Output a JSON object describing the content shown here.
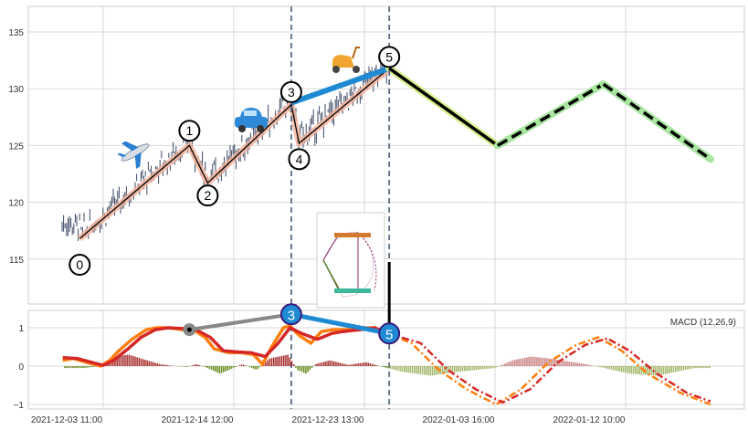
{
  "chart_data": {
    "type": "candlestick+line",
    "x_unit": "tick index (0 = first labeled tick)",
    "x_ticks": [
      {
        "t": 0,
        "label": "2021-12-03 11:00"
      },
      {
        "t": 1,
        "label": "2021-12-14 12:00"
      },
      {
        "t": 2,
        "label": "2021-12-23 13:00"
      },
      {
        "t": 3,
        "label": "2022-01-03 16:00"
      },
      {
        "t": 4,
        "label": "2022-01-12 10:00"
      }
    ],
    "price_panel": {
      "ylim": [
        110.8,
        137
      ],
      "y_ticks": [
        "115",
        "120",
        "125",
        "130",
        "135"
      ],
      "y_tick_values": [
        115,
        120,
        125,
        130,
        135
      ],
      "waves": [
        {
          "label": "0",
          "t": -0.18,
          "price": 116.8,
          "label_price": 114.5
        },
        {
          "label": "1",
          "t": 0.66,
          "price": 125.0,
          "label_price": 126.3
        },
        {
          "label": "2",
          "t": 0.8,
          "price": 121.7,
          "label_price": 120.6
        },
        {
          "label": "3",
          "t": 1.44,
          "price": 128.6,
          "label_price": 129.7
        },
        {
          "label": "4",
          "t": 1.5,
          "price": 125.2,
          "label_price": 123.8
        },
        {
          "label": "5",
          "t": 2.19,
          "price": 131.8,
          "label_price": 132.8
        }
      ],
      "projection": [
        {
          "t": 2.19,
          "price": 131.8
        },
        {
          "t": 3.02,
          "price": 125.0
        },
        {
          "t": 3.83,
          "price": 130.4
        },
        {
          "t": 4.65,
          "price": 123.8
        }
      ],
      "vertical_markers_t": [
        1.44,
        2.19
      ],
      "icons": [
        "airplane-icon",
        "car-icon",
        "scooter-icon"
      ]
    },
    "macd_panel": {
      "label": "MACD (12,26,9)",
      "ylim": [
        -1.1,
        1.4
      ],
      "y_ticks": [
        "1",
        "0",
        "−1"
      ],
      "y_tick_values": [
        1,
        0,
        -1
      ],
      "macd": [
        [
          -0.31,
          0.15
        ],
        [
          -0.23,
          0.2
        ],
        [
          -0.13,
          0.1
        ],
        [
          -0.02,
          0
        ],
        [
          0.05,
          0.15
        ],
        [
          0.12,
          0.4
        ],
        [
          0.22,
          0.7
        ],
        [
          0.33,
          0.95
        ],
        [
          0.41,
          1.0
        ],
        [
          0.5,
          1.0
        ],
        [
          0.61,
          0.95
        ],
        [
          0.71,
          0.9
        ],
        [
          0.78,
          0.75
        ],
        [
          0.85,
          0.45
        ],
        [
          0.96,
          0.35
        ],
        [
          1.06,
          0.35
        ],
        [
          1.15,
          0.3
        ],
        [
          1.22,
          0.05
        ],
        [
          1.29,
          0.5
        ],
        [
          1.38,
          1.0
        ],
        [
          1.43,
          1.05
        ],
        [
          1.5,
          0.8
        ],
        [
          1.59,
          0.6
        ],
        [
          1.67,
          0.9
        ],
        [
          1.76,
          0.95
        ],
        [
          1.87,
          0.95
        ],
        [
          1.97,
          1.0
        ],
        [
          2.08,
          1.0
        ],
        [
          2.18,
          0.85
        ]
      ],
      "signal": [
        [
          -0.31,
          0.22
        ],
        [
          -0.2,
          0.2
        ],
        [
          -0.09,
          0.1
        ],
        [
          0,
          0.02
        ],
        [
          0.08,
          0.15
        ],
        [
          0.19,
          0.45
        ],
        [
          0.29,
          0.75
        ],
        [
          0.4,
          0.95
        ],
        [
          0.5,
          1.0
        ],
        [
          0.61,
          0.98
        ],
        [
          0.71,
          0.95
        ],
        [
          0.82,
          0.75
        ],
        [
          0.92,
          0.4
        ],
        [
          1.03,
          0.37
        ],
        [
          1.13,
          0.35
        ],
        [
          1.24,
          0.25
        ],
        [
          1.34,
          0.6
        ],
        [
          1.43,
          1.0
        ],
        [
          1.52,
          0.85
        ],
        [
          1.64,
          0.7
        ],
        [
          1.75,
          0.85
        ],
        [
          1.83,
          0.9
        ],
        [
          1.97,
          0.95
        ],
        [
          2.08,
          1.0
        ],
        [
          2.18,
          0.85
        ]
      ],
      "macd_projection": [
        [
          2.18,
          0.85
        ],
        [
          2.36,
          0.6
        ],
        [
          2.57,
          -0.1
        ],
        [
          2.78,
          -0.6
        ],
        [
          3.01,
          -1.0
        ],
        [
          3.2,
          -0.6
        ],
        [
          3.41,
          0.1
        ],
        [
          3.62,
          0.55
        ],
        [
          3.79,
          0.75
        ],
        [
          3.97,
          0.4
        ],
        [
          4.17,
          -0.2
        ],
        [
          4.42,
          -0.7
        ],
        [
          4.65,
          -1.0
        ]
      ],
      "signal_projection": [
        [
          2.18,
          0.85
        ],
        [
          2.43,
          0.6
        ],
        [
          2.64,
          -0.1
        ],
        [
          2.85,
          -0.6
        ],
        [
          3.06,
          -0.95
        ],
        [
          3.27,
          -0.6
        ],
        [
          3.48,
          0.1
        ],
        [
          3.69,
          0.55
        ],
        [
          3.86,
          0.72
        ],
        [
          4.03,
          0.4
        ],
        [
          4.24,
          -0.2
        ],
        [
          4.47,
          -0.7
        ],
        [
          4.65,
          -0.92
        ]
      ],
      "histogram": [
        [
          -0.31,
          -0.05
        ],
        [
          -0.16,
          -0.05
        ],
        [
          -0.02,
          0
        ],
        [
          0.08,
          0.25
        ],
        [
          0.19,
          0.3
        ],
        [
          0.33,
          0.15
        ],
        [
          0.43,
          0.05
        ],
        [
          0.54,
          0
        ],
        [
          0.64,
          -0.02
        ],
        [
          0.71,
          0.05
        ],
        [
          0.78,
          -0.03
        ],
        [
          0.89,
          -0.2
        ],
        [
          0.99,
          -0.05
        ],
        [
          1.06,
          0.05
        ],
        [
          1.17,
          -0.1
        ],
        [
          1.27,
          0.2
        ],
        [
          1.41,
          0.3
        ],
        [
          1.48,
          -0.1
        ],
        [
          1.55,
          -0.2
        ],
        [
          1.62,
          0.05
        ],
        [
          1.73,
          0.15
        ],
        [
          1.87,
          0.03
        ],
        [
          2.01,
          0.1
        ],
        [
          2.11,
          0
        ],
        [
          2.29,
          -0.15
        ],
        [
          2.5,
          -0.25
        ],
        [
          2.71,
          -0.15
        ],
        [
          2.99,
          -0.05
        ],
        [
          3.13,
          0.15
        ],
        [
          3.27,
          0.25
        ],
        [
          3.41,
          0.2
        ],
        [
          3.69,
          0.05
        ],
        [
          3.83,
          -0.05
        ],
        [
          4.03,
          -0.2
        ],
        [
          4.24,
          -0.25
        ],
        [
          4.52,
          -0.05
        ],
        [
          4.65,
          -0.05
        ]
      ],
      "markers": [
        {
          "label": "",
          "t": 0.66,
          "value": 0.95
        },
        {
          "label": "3",
          "t": 1.44,
          "value": 1.35
        },
        {
          "label": "5",
          "t": 2.19,
          "value": 0.85
        }
      ]
    },
    "colors": {
      "candle": "#3d4a66",
      "wave_glow": "#f4b19a",
      "wave_line": "#000000",
      "b_leg": "#1f8ad4",
      "proj_a": "#d8f08c",
      "proj_b": "#a8e6a0",
      "macd": "#ff7f0e",
      "signal": "#d62728",
      "hist_pos": "#a52a2a",
      "hist_neg": "#6b8e23",
      "hist_pos_proj": "#c98080",
      "hist_neg_proj": "#a3b86c",
      "grid": "#d9d9d9"
    }
  }
}
